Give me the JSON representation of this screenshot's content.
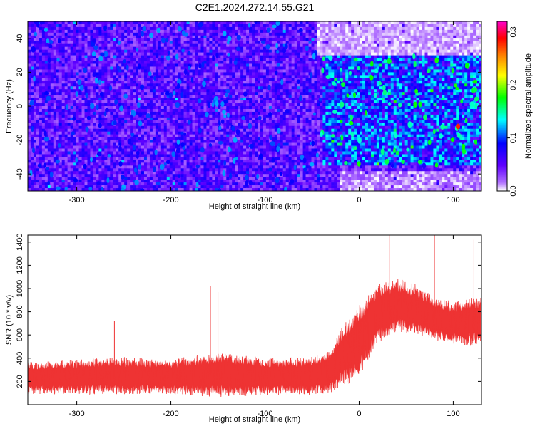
{
  "figure_title": "C2E1.2024.272.14.55.G21",
  "chart_data": [
    {
      "type": "heatmap",
      "title": "C2E1.2024.272.14.55.G21",
      "xlabel": "Height of straight line (km)",
      "ylabel": "Frequency (Hz)",
      "xlim": [
        -352,
        130
      ],
      "ylim": [
        -50,
        50
      ],
      "x_ticks": [
        -300,
        -200,
        -100,
        0,
        100
      ],
      "y_ticks": [
        -40,
        -20,
        0,
        20,
        40
      ],
      "colorbar": {
        "label": "Normalized spectral amplitude",
        "range": [
          0.0,
          0.32
        ],
        "ticks": [
          0.0,
          0.1,
          0.2,
          0.3
        ],
        "colormap": [
          "#ffffff",
          "#7f00ff",
          "#0000ff",
          "#00ffff",
          "#00ff00",
          "#ffff00",
          "#ff8000",
          "#ff0000",
          "#ff00ff"
        ]
      },
      "regions": [
        {
          "x": [
            -352,
            -40
          ],
          "y": [
            -50,
            50
          ],
          "amplitude": [
            0.02,
            0.08
          ],
          "note": ""
        },
        {
          "x": [
            -40,
            130
          ],
          "y": [
            -35,
            30
          ],
          "amplitude": [
            0.04,
            0.14
          ]
        },
        {
          "x": [
            -45,
            130
          ],
          "y": [
            30,
            50
          ],
          "amplitude": [
            0.0,
            0.02
          ]
        },
        {
          "x": [
            -20,
            130
          ],
          "y": [
            -50,
            -38
          ],
          "amplitude": [
            0.0,
            0.03
          ]
        }
      ],
      "peak": {
        "x": 105,
        "y": -12,
        "amplitude": 0.28
      }
    },
    {
      "type": "line",
      "xlabel": "Height of straight line (km)",
      "ylabel": "SNR (10 * v/v)",
      "xlim": [
        -352,
        130
      ],
      "ylim": [
        0,
        1460
      ],
      "x_ticks": [
        -300,
        -200,
        -100,
        0,
        100
      ],
      "y_ticks": [
        200,
        400,
        600,
        800,
        1000,
        1200,
        1400
      ],
      "color": "#ee3333",
      "series": [
        {
          "x": [
            -350,
            -300,
            -250,
            -200,
            -150,
            -100,
            -50,
            -30,
            -20,
            0,
            20,
            40,
            60,
            80,
            100,
            120,
            130
          ],
          "values": [
            230,
            240,
            250,
            240,
            260,
            240,
            250,
            280,
            400,
            550,
            780,
            860,
            820,
            740,
            700,
            720,
            730
          ],
          "spread": [
            120,
            130,
            140,
            130,
            170,
            140,
            140,
            160,
            220,
            280,
            220,
            200,
            190,
            170,
            160,
            180,
            180
          ]
        }
      ],
      "spikes": [
        {
          "x": -158,
          "y": 1020
        },
        {
          "x": -150,
          "y": 970
        },
        {
          "x": -260,
          "y": 720
        },
        {
          "x": 32,
          "y": 1460
        },
        {
          "x": 80,
          "y": 1460
        },
        {
          "x": 122,
          "y": 1420
        }
      ]
    }
  ]
}
